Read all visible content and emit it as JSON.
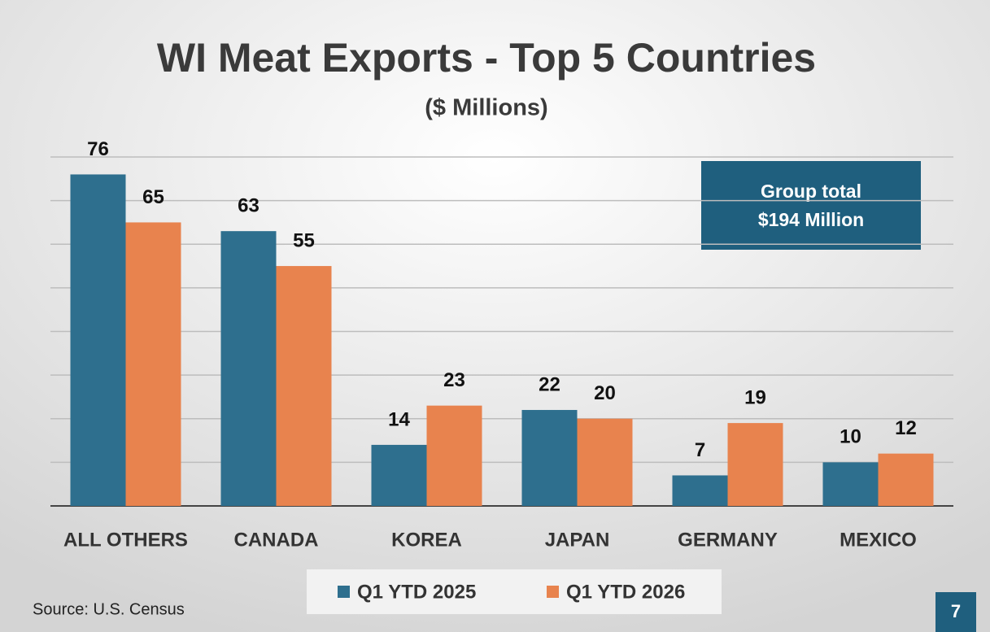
{
  "chart_data": {
    "type": "bar",
    "title": "WI Meat Exports - Top 5 Countries",
    "subtitle": "($ Millions)",
    "categories": [
      "ALL OTHERS",
      "CANADA",
      "KOREA",
      "JAPAN",
      "GERMANY",
      "MEXICO"
    ],
    "series": [
      {
        "name": "Q1 YTD 2025",
        "color": "#2e6f8e",
        "values": [
          76,
          63,
          14,
          22,
          7,
          10
        ]
      },
      {
        "name": "Q1 YTD 2026",
        "color": "#e8834e",
        "values": [
          65,
          55,
          23,
          20,
          19,
          12
        ]
      }
    ],
    "ylim": [
      0,
      80
    ],
    "yticks": [
      0,
      10,
      20,
      30,
      40,
      50,
      60,
      70,
      80
    ],
    "grid": true,
    "annotation": [
      "Group total",
      "$194 Million"
    ],
    "source": "Source: U.S. Census",
    "page_number": "7"
  }
}
